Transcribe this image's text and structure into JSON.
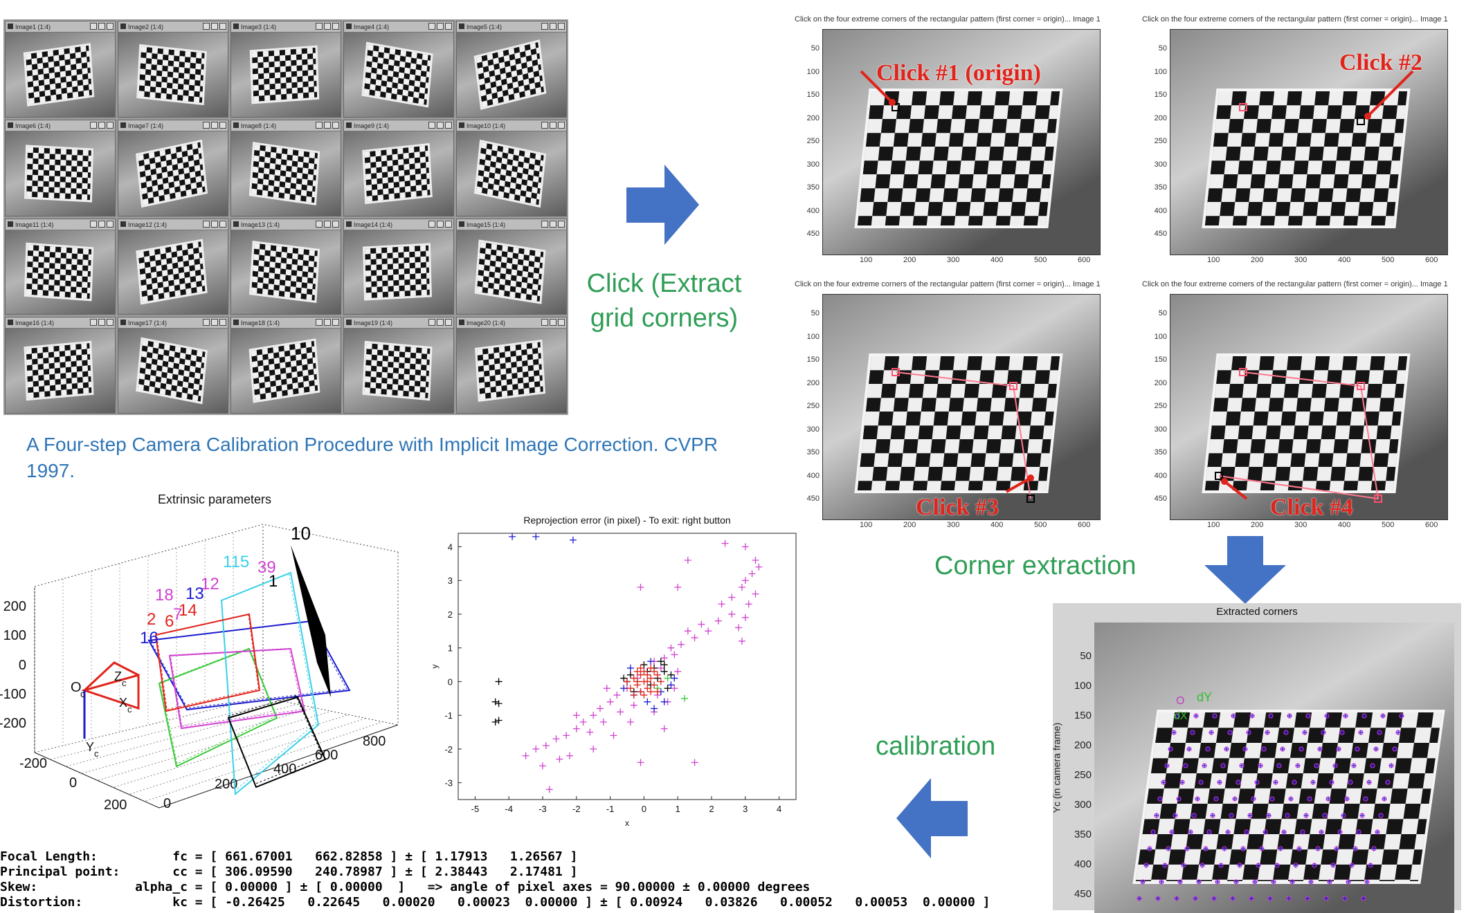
{
  "thumbnails": [
    "Image1 (1:4)",
    "Image2 (1:4)",
    "Image3 (1:4)",
    "Image4 (1:4)",
    "Image5 (1:4)",
    "Image6 (1:4)",
    "Image7 (1:4)",
    "Image8 (1:4)",
    "Image9 (1:4)",
    "Image10 (1:4)",
    "Image11 (1:4)",
    "Image12 (1:4)",
    "Image13 (1:4)",
    "Image14 (1:4)",
    "Image15 (1:4)",
    "Image16 (1:4)",
    "Image17 (1:4)",
    "Image18 (1:4)",
    "Image19 (1:4)",
    "Image20 (1:4)"
  ],
  "labels": {
    "click_step": "Click (Extract grid corners)",
    "corner_step": "Corner extraction",
    "calib_step": "calibration",
    "reference": "A Four-step Camera Calibration Procedure with Implicit Image Correction. CVPR 1997."
  },
  "click_panels": [
    {
      "caption": "Click on the four extreme corners of the rectangular pattern (first corner = origin)... Image 1",
      "label": "Click #1 (origin)"
    },
    {
      "caption": "Click on the four extreme corners of the rectangular pattern (first corner = origin)... Image 1",
      "label": "Click #2"
    },
    {
      "caption": "Click on the four extreme corners of the rectangular pattern (first corner = origin)... Image 1",
      "label": "Click #3"
    },
    {
      "caption": "Click on the four extreme corners of the rectangular pattern (first corner = origin)... Image 1",
      "label": "Click #4"
    }
  ],
  "click_axes": {
    "y_ticks": [
      "50",
      "100",
      "150",
      "200",
      "250",
      "300",
      "350",
      "400",
      "450"
    ],
    "x_ticks": [
      "100",
      "200",
      "300",
      "400",
      "500",
      "600"
    ]
  },
  "extracted": {
    "title": "Extracted corners",
    "ylabel": "Yc (in camera frame)",
    "y_ticks": [
      "50",
      "100",
      "150",
      "200",
      "250",
      "300",
      "350",
      "400",
      "450"
    ],
    "marks": [
      "O",
      "dY",
      "dX"
    ]
  },
  "extrinsic": {
    "title": "Extrinsic parameters",
    "z_ticks": [
      "200",
      "100",
      "0",
      "-100",
      "-200"
    ],
    "x_ticks": [
      "-200",
      "0",
      "200"
    ],
    "y_ticks": [
      "0",
      "200",
      "400",
      "600",
      "800"
    ],
    "camera_labels": [
      "O",
      "c",
      "Z",
      "c",
      "X",
      "c",
      "Y",
      "c"
    ],
    "board_labels": [
      {
        "text": "10",
        "color": "#000000"
      },
      {
        "text": "115",
        "color": "#3ad0e8"
      },
      {
        "text": "39",
        "color": "#d040d0"
      },
      {
        "text": "1",
        "color": "#000000"
      },
      {
        "text": "18",
        "color": "#d040d0"
      },
      {
        "text": "13",
        "color": "#1a1ad0"
      },
      {
        "text": "12",
        "color": "#d040d0"
      },
      {
        "text": "14",
        "color": "#e0241b"
      },
      {
        "text": "2",
        "color": "#e0241b"
      },
      {
        "text": "6",
        "color": "#e0241b"
      },
      {
        "text": "7",
        "color": "#d040d0"
      },
      {
        "text": "16",
        "color": "#1a1ad0"
      }
    ],
    "colors": {
      "cyan": "#3ad0e8",
      "magenta": "#d040d0",
      "red": "#e0241b",
      "blue": "#1a1ad0",
      "green": "#3cc83c",
      "black": "#000000"
    }
  },
  "chart_data": {
    "type": "scatter",
    "title": "Reprojection error (in pixel) - To exit: right button",
    "xlabel": "x",
    "ylabel": "y",
    "xlim": [
      -5.5,
      4.5
    ],
    "ylim": [
      -3.5,
      4.4
    ],
    "x_ticks": [
      -5,
      -4,
      -3,
      -2,
      -1,
      0,
      1,
      2,
      3,
      4
    ],
    "y_ticks": [
      -3,
      -2,
      -1,
      0,
      1,
      2,
      3,
      4
    ],
    "series": [
      {
        "color": "#d040d0",
        "points": [
          [
            3.0,
            4.0
          ],
          [
            2.4,
            4.1
          ],
          [
            3.3,
            3.6
          ],
          [
            3.4,
            3.4
          ],
          [
            3.2,
            3.2
          ],
          [
            3.0,
            3.0
          ],
          [
            2.9,
            2.8
          ],
          [
            3.3,
            2.6
          ],
          [
            3.1,
            2.3
          ],
          [
            3.0,
            1.9
          ],
          [
            2.6,
            2.5
          ],
          [
            2.8,
            1.6
          ],
          [
            2.9,
            1.2
          ],
          [
            1.3,
            3.6
          ],
          [
            1.0,
            2.8
          ],
          [
            -0.1,
            2.8
          ],
          [
            2.3,
            2.3
          ],
          [
            2.6,
            2.0
          ],
          [
            2.2,
            1.8
          ],
          [
            1.7,
            1.7
          ],
          [
            1.9,
            1.5
          ],
          [
            1.5,
            1.3
          ],
          [
            1.1,
            1.1
          ],
          [
            0.9,
            0.8
          ],
          [
            0.8,
            1.0
          ],
          [
            0.6,
            0.7
          ],
          [
            0.3,
            0.6
          ],
          [
            0.5,
            0.4
          ],
          [
            0.1,
            0.3
          ],
          [
            -0.2,
            0.1
          ],
          [
            -0.5,
            -0.2
          ],
          [
            -0.8,
            -0.4
          ],
          [
            -1.0,
            -0.6
          ],
          [
            -1.3,
            -0.8
          ],
          [
            -1.5,
            -1.0
          ],
          [
            -1.8,
            -1.2
          ],
          [
            -2.0,
            -1.4
          ],
          [
            -2.3,
            -1.6
          ],
          [
            -2.6,
            -1.7
          ],
          [
            -2.9,
            -1.9
          ],
          [
            -3.2,
            -2.0
          ],
          [
            -3.5,
            -2.2
          ],
          [
            -1.2,
            -1.2
          ],
          [
            -1.6,
            -1.5
          ],
          [
            -2.0,
            -1.0
          ],
          [
            -0.7,
            -0.9
          ],
          [
            -0.3,
            -0.7
          ],
          [
            0.3,
            -0.9
          ],
          [
            0.7,
            -0.6
          ],
          [
            -2.5,
            -2.3
          ],
          [
            -3.0,
            -2.5
          ],
          [
            -2.8,
            -3.2
          ],
          [
            1.5,
            -2.4
          ],
          [
            -0.1,
            -2.4
          ],
          [
            0.6,
            -1.4
          ],
          [
            -0.9,
            -1.6
          ],
          [
            -1.5,
            -2.0
          ],
          [
            -2.2,
            -2.2
          ],
          [
            -0.4,
            -1.2
          ],
          [
            1.0,
            0.3
          ],
          [
            -1.1,
            -0.2
          ],
          [
            0.4,
            -0.4
          ],
          [
            0.9,
            -0.2
          ],
          [
            1.3,
            1.5
          ]
        ]
      },
      {
        "color": "#000000",
        "points": [
          [
            -4.3,
            0.0
          ],
          [
            -4.4,
            -0.6
          ],
          [
            -4.3,
            -0.65
          ],
          [
            -4.4,
            -1.2
          ],
          [
            -4.3,
            -1.15
          ],
          [
            0.0,
            0.5
          ],
          [
            0.3,
            0.4
          ],
          [
            0.6,
            0.3
          ],
          [
            0.8,
            0.2
          ],
          [
            -0.4,
            0.2
          ],
          [
            -0.6,
            0.1
          ],
          [
            0.5,
            0.6
          ],
          [
            0.2,
            -0.1
          ],
          [
            0.7,
            -0.2
          ],
          [
            -0.3,
            -0.3
          ],
          [
            0.4,
            0.1
          ],
          [
            0.1,
            0.3
          ],
          [
            0.6,
            0.5
          ],
          [
            -0.5,
            0.0
          ]
        ]
      },
      {
        "color": "#1a1ad0",
        "points": [
          [
            -3.9,
            4.3
          ],
          [
            -3.2,
            4.3
          ],
          [
            -2.1,
            4.2
          ],
          [
            0.1,
            -0.6
          ],
          [
            0.5,
            -0.3
          ],
          [
            -0.3,
            -0.4
          ],
          [
            0.8,
            -0.1
          ],
          [
            -0.6,
            -0.2
          ],
          [
            0.3,
            -0.8
          ],
          [
            0.6,
            -0.6
          ],
          [
            -0.1,
            -0.3
          ],
          [
            0.9,
            0.1
          ],
          [
            -0.4,
            0.4
          ],
          [
            0.2,
            0.6
          ]
        ]
      },
      {
        "color": "#3cc83c",
        "points": [
          [
            1.2,
            -0.5
          ],
          [
            0.7,
            0.1
          ],
          [
            -0.2,
            0.0
          ],
          [
            0.4,
            -0.2
          ]
        ]
      },
      {
        "color": "#e0241b",
        "points": [
          [
            -0.3,
            0.1
          ],
          [
            -0.2,
            -0.1
          ],
          [
            -0.1,
            0.2
          ],
          [
            0.0,
            0.0
          ],
          [
            0.1,
            -0.2
          ],
          [
            0.2,
            0.1
          ],
          [
            0.3,
            -0.1
          ],
          [
            -0.4,
            -0.2
          ],
          [
            0.0,
            0.3
          ],
          [
            0.2,
            -0.3
          ],
          [
            -0.2,
            0.3
          ],
          [
            0.4,
            0.2
          ],
          [
            -0.1,
            -0.3
          ],
          [
            0.1,
            0.2
          ],
          [
            0.3,
            0.3
          ],
          [
            -0.3,
            -0.4
          ],
          [
            0.0,
            -0.4
          ],
          [
            0.5,
            0.0
          ],
          [
            -0.5,
            0.0
          ],
          [
            0.2,
            0.4
          ],
          [
            -0.1,
            0.4
          ],
          [
            0.4,
            -0.3
          ],
          [
            0.1,
            0.0
          ],
          [
            -0.2,
            0.0
          ]
        ]
      }
    ]
  },
  "calibration_results": [
    "Focal Length:          fc = [ 661.67001   662.82858 ] ± [ 1.17913   1.26567 ]",
    "Principal point:       cc = [ 306.09590   240.78987 ] ± [ 2.38443   2.17481 ]",
    "Skew:             alpha_c = [ 0.00000 ] ± [ 0.00000  ]   => angle of pixel axes = 90.00000 ± 0.00000 degrees",
    "Distortion:            kc = [ -0.26425   0.22645   0.00020   0.00023  0.00000 ] ± [ 0.00924   0.03826   0.00052   0.00053  0.00000 ]"
  ]
}
